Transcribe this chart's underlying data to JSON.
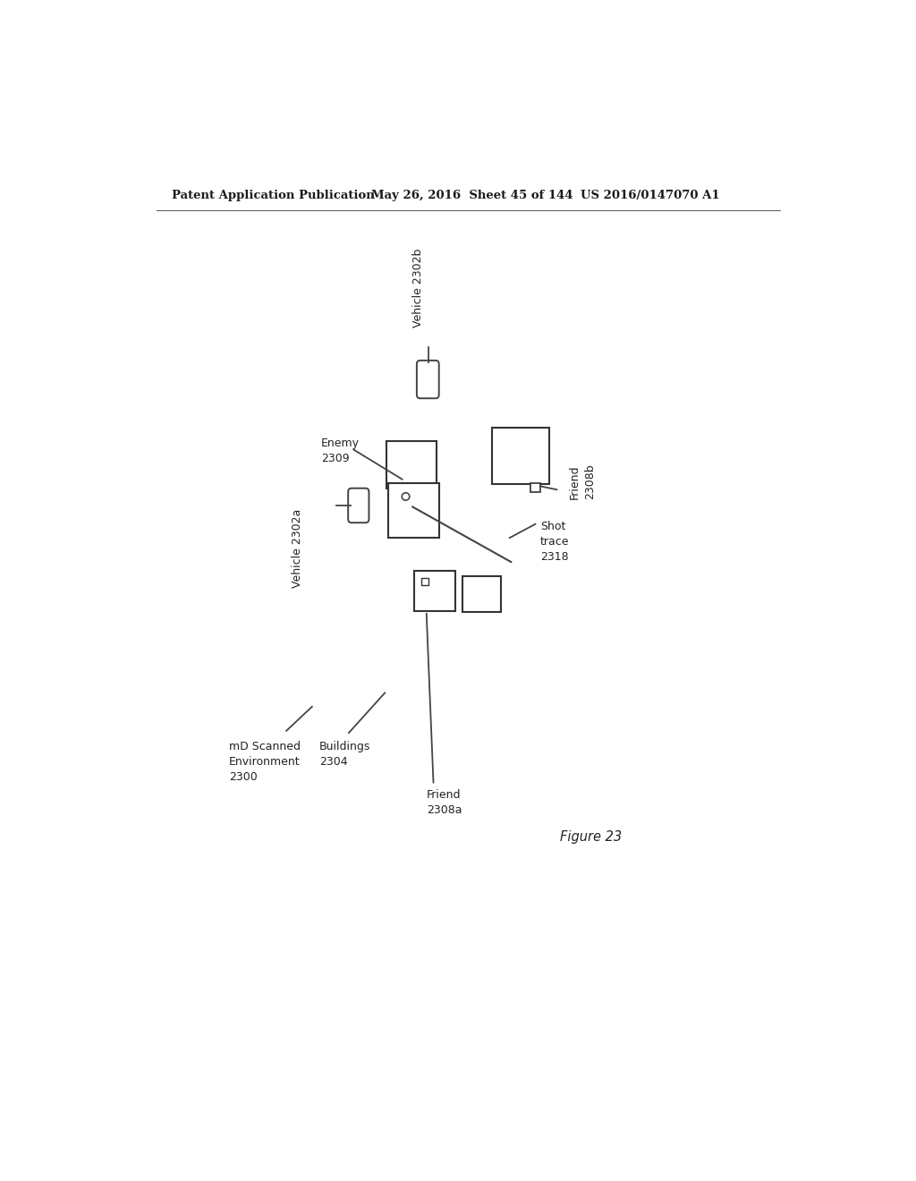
{
  "bg_color": "#ffffff",
  "header_left": "Patent Application Publication",
  "header_mid": "May 26, 2016  Sheet 45 of 144",
  "header_right": "US 2016/0147070 A1",
  "figure_label": "Figure 23",
  "label_env": "mD Scanned\nEnvironment\n2300",
  "label_buildings": "Buildings\n2304",
  "label_vehicle_a": "Vehicle 2302a",
  "label_vehicle_b": "Vehicle 2302b",
  "label_enemy": "Enemy\n2309",
  "label_friend_a": "Friend\n2308a",
  "label_friend_b": "Friend\n2308b",
  "label_shot": "Shot\ntrace\n2318"
}
